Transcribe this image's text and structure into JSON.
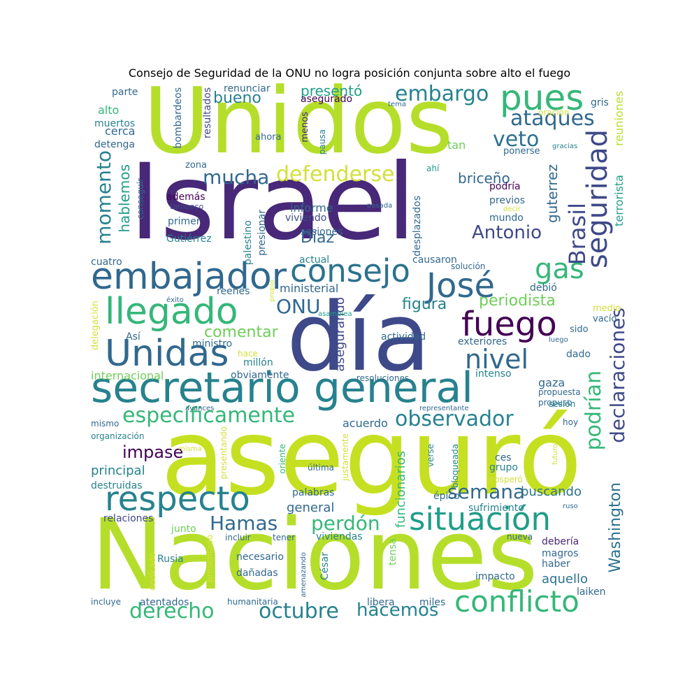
{
  "title": "Consejo de Seguridad de la ONU no logra posición conjunta sobre alto el fuego",
  "palette": [
    "#440154",
    "#482878",
    "#3e4989",
    "#31688e",
    "#26828e",
    "#1f9e89",
    "#35b779",
    "#6ece58",
    "#b5de2b",
    "#d3e03a",
    "#fde725"
  ],
  "words": [
    {
      "text": "Israel",
      "c": "#482878"
    },
    {
      "text": "Unidos",
      "c": "#b5de2b"
    },
    {
      "text": "aseguró",
      "c": "#c5e021"
    },
    {
      "text": "Naciones",
      "c": "#b5de2b"
    },
    {
      "text": "día",
      "c": "#3e4989"
    },
    {
      "text": "secretario general",
      "c": "#26828e"
    },
    {
      "text": "embajador",
      "c": "#31688e"
    },
    {
      "text": "consejo",
      "c": "#2c728e"
    },
    {
      "text": "José",
      "c": "#31688e"
    },
    {
      "text": "llegado",
      "c": "#35b779"
    },
    {
      "text": "Unidas",
      "c": "#31688e"
    },
    {
      "text": "fuego",
      "c": "#440154"
    },
    {
      "text": "pues",
      "c": "#35b779"
    },
    {
      "text": "respecto",
      "c": "#26828e"
    },
    {
      "text": "situación",
      "c": "#1f9e89"
    },
    {
      "text": "conflicto",
      "c": "#35b779"
    },
    {
      "text": "específicamente",
      "c": "#35b779"
    },
    {
      "text": "seguridad",
      "c": "#3e4989"
    },
    {
      "text": "declaraciones",
      "c": "#3e4989"
    },
    {
      "text": "nivel",
      "c": "#31688e"
    },
    {
      "text": "gas",
      "c": "#35b779"
    },
    {
      "text": "embargo",
      "c": "#26828e"
    },
    {
      "text": "ataques",
      "c": "#31688e"
    },
    {
      "text": "veto",
      "c": "#2c728e"
    },
    {
      "text": "defenderse",
      "c": "#d3e03a"
    },
    {
      "text": "mucha",
      "c": "#31688e"
    },
    {
      "text": "Brasil",
      "c": "#3e4989"
    },
    {
      "text": "momento",
      "c": "#26828e"
    },
    {
      "text": "observador",
      "c": "#26828e"
    },
    {
      "text": "podrían",
      "c": "#35b779"
    },
    {
      "text": "Washington",
      "c": "#2c728e"
    },
    {
      "text": "octubre",
      "c": "#26828e"
    },
    {
      "text": "derecho",
      "c": "#35b779"
    },
    {
      "text": "hacemos",
      "c": "#26828e"
    },
    {
      "text": "Hamas",
      "c": "#31688e"
    },
    {
      "text": "perdón",
      "c": "#35b779"
    },
    {
      "text": "semana",
      "c": "#31688e"
    },
    {
      "text": "ONU",
      "c": "#31688e"
    },
    {
      "text": "Antonio",
      "c": "#3e4989"
    },
    {
      "text": "Díaz",
      "c": "#31688e"
    },
    {
      "text": "figura",
      "c": "#26828e"
    },
    {
      "text": "periodista",
      "c": "#6ece58"
    },
    {
      "text": "comentar",
      "c": "#6ece58"
    },
    {
      "text": "impase",
      "c": "#440154"
    },
    {
      "text": "guterrez",
      "c": "#31688e"
    },
    {
      "text": "hablemos",
      "c": "#1f9e89"
    },
    {
      "text": "briceño",
      "c": "#31688e"
    },
    {
      "text": "bueno",
      "c": "#26828e"
    },
    {
      "text": "presentó",
      "c": "#1f9e89"
    },
    {
      "text": "buscando",
      "c": "#2c728e"
    },
    {
      "text": "funcionarios",
      "c": "#35b779"
    },
    {
      "text": "principal",
      "c": "#26828e"
    },
    {
      "text": "asegurando",
      "c": "#3e4989"
    },
    {
      "text": "informe",
      "c": "#31688e"
    },
    {
      "text": "general",
      "c": "#31688e"
    },
    {
      "text": "acuerdo",
      "c": "#31688e"
    },
    {
      "text": "aquello",
      "c": "#2c728e"
    },
    {
      "text": "gaza",
      "c": "#31688e"
    },
    {
      "text": "tan",
      "c": "#6ece58"
    },
    {
      "text": "alto",
      "c": "#35b779"
    },
    {
      "text": "cerca",
      "c": "#31688e"
    },
    {
      "text": "ministerial",
      "c": "#31688e"
    },
    {
      "text": "internacional",
      "c": "#6ece58"
    },
    {
      "text": "reuniones",
      "c": "#b5de2b"
    },
    {
      "text": "terrorista",
      "c": "#1f9e89"
    },
    {
      "text": "bombardeos",
      "c": "#31688e"
    },
    {
      "text": "resultados",
      "c": "#3e4989"
    },
    {
      "text": "renunciar",
      "c": "#31688e"
    },
    {
      "text": "asegurado",
      "c": "#440154"
    },
    {
      "text": "parte",
      "c": "#31688e"
    },
    {
      "text": "muertos",
      "c": "#26828e"
    },
    {
      "text": "detenga",
      "c": "#31688e"
    },
    {
      "text": "ahora",
      "c": "#31688e"
    },
    {
      "text": "menos",
      "c": "#482878"
    },
    {
      "text": "pausa",
      "c": "#26828e"
    },
    {
      "text": "tema",
      "c": "#31688e"
    },
    {
      "text": "gris",
      "c": "#31688e"
    },
    {
      "text": "oración",
      "c": "#d3e03a"
    },
    {
      "text": "gracias",
      "c": "#26828e"
    },
    {
      "text": "ponerse",
      "c": "#31688e"
    },
    {
      "text": "zona",
      "c": "#31688e"
    },
    {
      "text": "ahí",
      "c": "#1f9e89"
    },
    {
      "text": "podría",
      "c": "#440154"
    },
    {
      "text": "previos",
      "c": "#31688e"
    },
    {
      "text": "decir",
      "c": "#d3e03a"
    },
    {
      "text": "mundo",
      "c": "#31688e"
    },
    {
      "text": "conseguir",
      "c": "#31688e"
    },
    {
      "text": "además",
      "c": "#440154"
    },
    {
      "text": "tampoco",
      "c": "#3e4989"
    },
    {
      "text": "primer",
      "c": "#31688e"
    },
    {
      "text": "Gutiérrez",
      "c": "#26828e"
    },
    {
      "text": "palestino",
      "c": "#26828e"
    },
    {
      "text": "presionar",
      "c": "#31688e"
    },
    {
      "text": "viviendo",
      "c": "#3e4989"
    },
    {
      "text": "sesiones",
      "c": "#31688e"
    },
    {
      "text": "desplazados",
      "c": "#31688e"
    },
    {
      "text": "pasada",
      "c": "#31688e"
    },
    {
      "text": "cuatro",
      "c": "#31688e"
    },
    {
      "text": "actual",
      "c": "#26828e"
    },
    {
      "text": "causaron",
      "c": "#31688e"
    },
    {
      "text": "solución",
      "c": "#31688e"
    },
    {
      "text": "reenes",
      "c": "#31688e"
    },
    {
      "text": "debió",
      "c": "#31688e"
    },
    {
      "text": "éxito",
      "c": "#31688e"
    },
    {
      "text": "propio",
      "c": "#d3e03a"
    },
    {
      "text": "asamblea",
      "c": "#1f9e89"
    },
    {
      "text": "medio",
      "c": "#d3e03a"
    },
    {
      "text": "delegación",
      "c": "#d3e03a"
    },
    {
      "text": "vacío",
      "c": "#31688e"
    },
    {
      "text": "sido",
      "c": "#31688e"
    },
    {
      "text": "Así",
      "c": "#31688e"
    },
    {
      "text": "ministro",
      "c": "#31688e"
    },
    {
      "text": "hace",
      "c": "#d3e03a"
    },
    {
      "text": "millón",
      "c": "#26828e"
    },
    {
      "text": "actividad",
      "c": "#31688e"
    },
    {
      "text": "exteriores",
      "c": "#31688e"
    },
    {
      "text": "luego",
      "c": "#31688e"
    },
    {
      "text": "dado",
      "c": "#31688e"
    },
    {
      "text": "obviamente",
      "c": "#31688e"
    },
    {
      "text": "intenso",
      "c": "#26828e"
    },
    {
      "text": "resoluciones",
      "c": "#31688e"
    },
    {
      "text": "propuesta",
      "c": "#31688e"
    },
    {
      "text": "propuso",
      "c": "#31688e"
    },
    {
      "text": "sesión",
      "c": "#26828e"
    },
    {
      "text": "avances",
      "c": "#31688e"
    },
    {
      "text": "representante",
      "c": "#31688e"
    },
    {
      "text": "mismo",
      "c": "#31688e"
    },
    {
      "text": "organización",
      "c": "#26828e"
    },
    {
      "text": "hoy",
      "c": "#31688e"
    },
    {
      "text": "presentando",
      "c": "#d3e03a"
    },
    {
      "text": "justamente",
      "c": "#d3e03a"
    },
    {
      "text": "misma",
      "c": "#d3e03a"
    },
    {
      "text": "oriente",
      "c": "#35b779"
    },
    {
      "text": "verse",
      "c": "#26828e"
    },
    {
      "text": "bloqueada",
      "c": "#26828e"
    },
    {
      "text": "futuro",
      "c": "#d3e03a"
    },
    {
      "text": "ces",
      "c": "#31688e"
    },
    {
      "text": "grupo",
      "c": "#26828e"
    },
    {
      "text": "prosperó",
      "c": "#d3e03a"
    },
    {
      "text": "última",
      "c": "#31688e"
    },
    {
      "text": "destruidas",
      "c": "#26828e"
    },
    {
      "text": "palabras",
      "c": "#31688e"
    },
    {
      "text": "épico",
      "c": "#31688e"
    },
    {
      "text": "sufrimiento",
      "c": "#26828e"
    },
    {
      "text": "ruso",
      "c": "#31688e"
    },
    {
      "text": "relaciones",
      "c": "#3e4989"
    },
    {
      "text": "junto",
      "c": "#6ece58"
    },
    {
      "text": "incluir",
      "c": "#31688e"
    },
    {
      "text": "tener",
      "c": "#31688e"
    },
    {
      "text": "viviendas",
      "c": "#26828e"
    },
    {
      "text": "nueva",
      "c": "#31688e"
    },
    {
      "text": "debería",
      "c": "#482878"
    },
    {
      "text": "magros",
      "c": "#31688e"
    },
    {
      "text": "haber",
      "c": "#31688e"
    },
    {
      "text": "Rusia",
      "c": "#26828e"
    },
    {
      "text": "necesario",
      "c": "#31688e"
    },
    {
      "text": "dañadas",
      "c": "#31688e"
    },
    {
      "text": "amenazando",
      "c": "#31688e"
    },
    {
      "text": "César",
      "c": "#26828e"
    },
    {
      "text": "tensa",
      "c": "#6ece58"
    },
    {
      "text": "impacto",
      "c": "#31688e"
    },
    {
      "text": "dedicado",
      "c": "#d3e03a"
    },
    {
      "text": "presentado",
      "c": "#d3e03a"
    },
    {
      "text": "incluye",
      "c": "#31688e"
    },
    {
      "text": "atentados",
      "c": "#31688e"
    },
    {
      "text": "humanitaria",
      "c": "#31688e"
    },
    {
      "text": "libera",
      "c": "#31688e"
    },
    {
      "text": "miles",
      "c": "#31688e"
    },
    {
      "text": "laiken",
      "c": "#31688e"
    }
  ]
}
